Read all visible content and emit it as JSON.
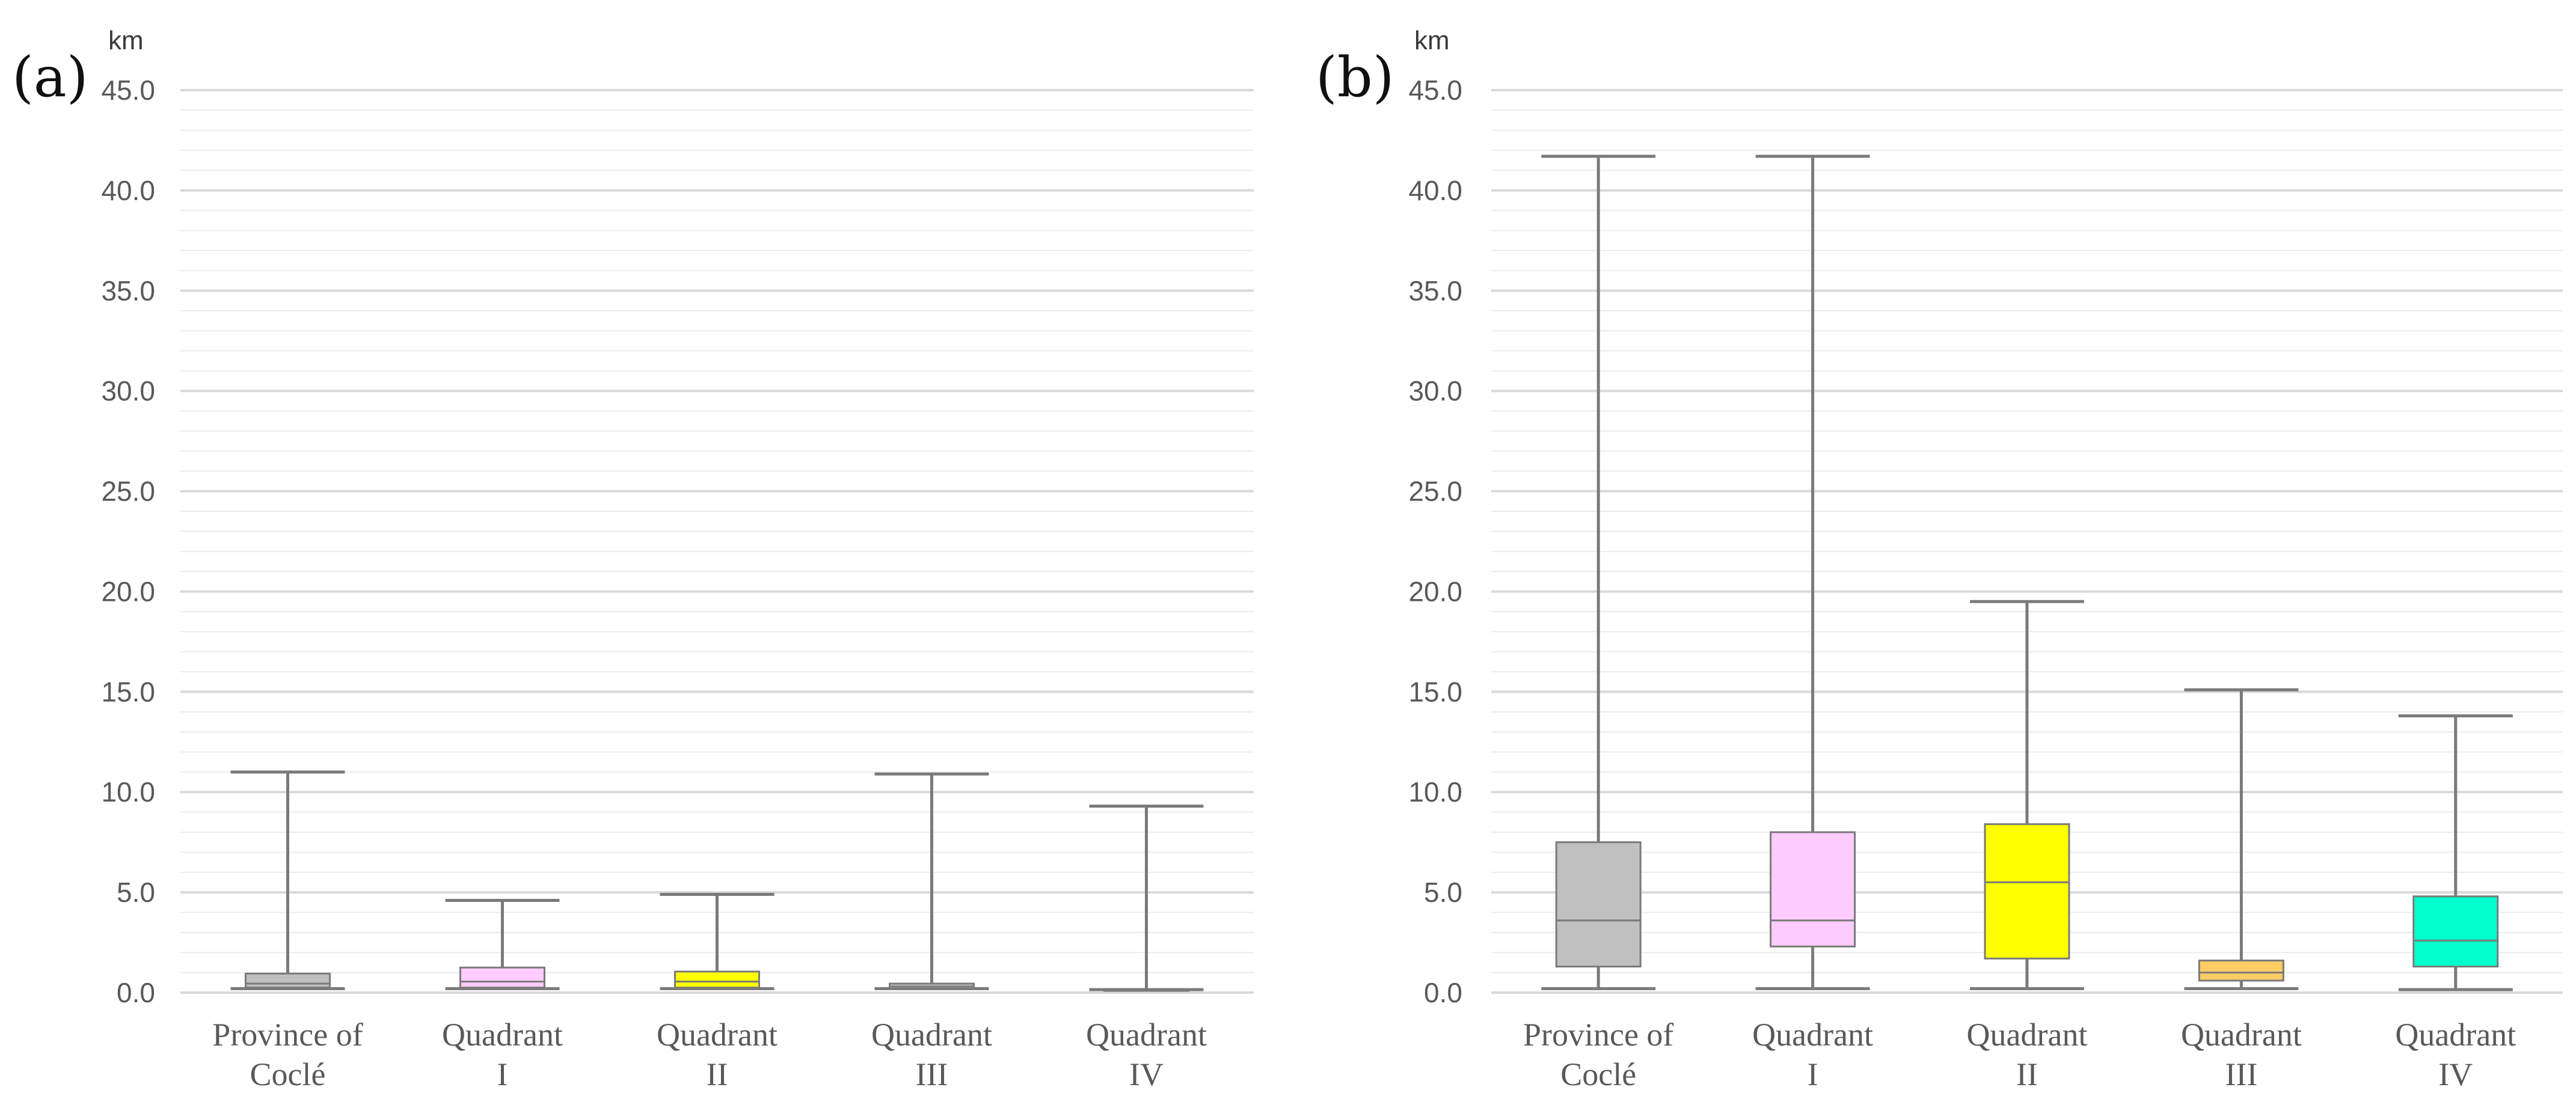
{
  "chart_data": [
    {
      "type": "box",
      "panel_label": "(a)",
      "unit_label": "km",
      "ylim": [
        0,
        45
      ],
      "y_ticks": [
        "0.0",
        "5.0",
        "10.0",
        "15.0",
        "20.0",
        "25.0",
        "30.0",
        "35.0",
        "40.0",
        "45.0"
      ],
      "grid": true,
      "categories": [
        {
          "line1": "Province of",
          "line2": "Coclé",
          "min": 0.2,
          "q1": 0.25,
          "median": 0.45,
          "q3": 0.95,
          "max": 11.0,
          "color": "#c0c0c0"
        },
        {
          "line1": "Quadrant",
          "line2": "I",
          "min": 0.2,
          "q1": 0.25,
          "median": 0.55,
          "q3": 1.25,
          "max": 4.6,
          "color": "#ffccff"
        },
        {
          "line1": "Quadrant",
          "line2": "II",
          "min": 0.2,
          "q1": 0.25,
          "median": 0.55,
          "q3": 1.05,
          "max": 4.9,
          "color": "#ffff00"
        },
        {
          "line1": "Quadrant",
          "line2": "III",
          "min": 0.2,
          "q1": 0.2,
          "median": 0.3,
          "q3": 0.45,
          "max": 10.9,
          "color": "#c0c0c0"
        },
        {
          "line1": "Quadrant",
          "line2": "IV",
          "min": 0.15,
          "q1": 0.15,
          "median": 0.15,
          "q3": 0.15,
          "max": 9.3,
          "color": "#c0c0c0"
        }
      ]
    },
    {
      "type": "box",
      "panel_label": "(b)",
      "unit_label": "km",
      "ylim": [
        0,
        45
      ],
      "y_ticks": [
        "0.0",
        "5.0",
        "10.0",
        "15.0",
        "20.0",
        "25.0",
        "30.0",
        "35.0",
        "40.0",
        "45.0"
      ],
      "grid": true,
      "categories": [
        {
          "line1": "Province of",
          "line2": "Coclé",
          "min": 0.2,
          "q1": 1.3,
          "median": 3.6,
          "q3": 7.5,
          "max": 41.7,
          "color": "#c0c0c0"
        },
        {
          "line1": "Quadrant",
          "line2": "I",
          "min": 0.2,
          "q1": 2.3,
          "median": 3.6,
          "q3": 8.0,
          "max": 41.7,
          "color": "#ffccff"
        },
        {
          "line1": "Quadrant",
          "line2": "II",
          "min": 0.2,
          "q1": 1.7,
          "median": 5.5,
          "q3": 8.4,
          "max": 19.5,
          "color": "#ffff00"
        },
        {
          "line1": "Quadrant",
          "line2": "III",
          "min": 0.2,
          "q1": 0.6,
          "median": 1.0,
          "q3": 1.6,
          "max": 15.1,
          "color": "#ffcc66"
        },
        {
          "line1": "Quadrant",
          "line2": "IV",
          "min": 0.15,
          "q1": 1.3,
          "median": 2.6,
          "q3": 4.8,
          "max": 13.8,
          "color": "#00ffcc"
        }
      ]
    }
  ]
}
